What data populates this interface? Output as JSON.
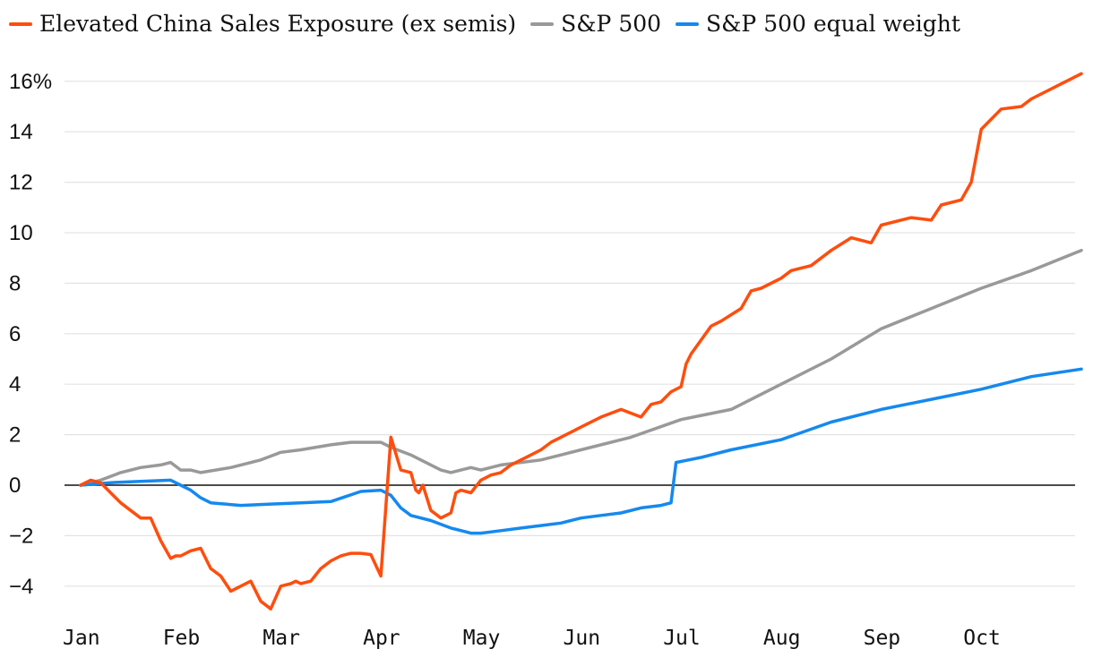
{
  "chart_data": {
    "type": "line",
    "title": "",
    "xlabel": "",
    "ylabel": "",
    "ylim": [
      -5,
      16
    ],
    "y_ticks": [
      -4,
      -2,
      0,
      2,
      4,
      6,
      8,
      10,
      12,
      14,
      16
    ],
    "y_tick_labels": [
      "−4",
      "−2",
      "0",
      "2",
      "4",
      "6",
      "8",
      "10",
      "12",
      "14",
      "16%"
    ],
    "x_range": [
      0,
      10
    ],
    "x_ticks": [
      0,
      1,
      2,
      3,
      4,
      5,
      6,
      7,
      8,
      9
    ],
    "x_tick_labels": [
      "Jan",
      "Feb",
      "Mar",
      "Apr",
      "May",
      "Jun",
      "Jul",
      "Aug",
      "Sep",
      "Oct"
    ],
    "grid": true,
    "legend_position": "top-left",
    "series": [
      {
        "name": "Elevated China Sales Exposure (ex semis)",
        "color": "#ff4d0d",
        "x": [
          0,
          0.1,
          0.2,
          0.3,
          0.4,
          0.5,
          0.6,
          0.7,
          0.8,
          0.9,
          0.95,
          1.0,
          1.1,
          1.2,
          1.3,
          1.4,
          1.5,
          1.6,
          1.7,
          1.8,
          1.9,
          2.0,
          2.1,
          2.15,
          2.2,
          2.3,
          2.4,
          2.5,
          2.6,
          2.7,
          2.8,
          2.9,
          3.0,
          3.1,
          3.2,
          3.3,
          3.35,
          3.38,
          3.42,
          3.5,
          3.6,
          3.7,
          3.75,
          3.8,
          3.9,
          4.0,
          4.1,
          4.2,
          4.3,
          4.4,
          4.5,
          4.6,
          4.7,
          4.8,
          4.9,
          5.0,
          5.2,
          5.4,
          5.6,
          5.7,
          5.8,
          5.9,
          6.0,
          6.05,
          6.1,
          6.3,
          6.4,
          6.6,
          6.7,
          6.8,
          7.0,
          7.1,
          7.3,
          7.5,
          7.7,
          7.9,
          8.0,
          8.3,
          8.5,
          8.6,
          8.8,
          8.9,
          9.0,
          9.2,
          9.4,
          9.5,
          9.8,
          10.0
        ],
        "values": [
          0,
          0.2,
          0.1,
          -0.3,
          -0.7,
          -1.0,
          -1.3,
          -1.3,
          -2.2,
          -2.9,
          -2.8,
          -2.8,
          -2.6,
          -2.5,
          -3.3,
          -3.6,
          -4.2,
          -4.0,
          -3.8,
          -4.6,
          -4.9,
          -4.0,
          -3.9,
          -3.8,
          -3.9,
          -3.8,
          -3.3,
          -3.0,
          -2.8,
          -2.7,
          -2.7,
          -2.75,
          -3.6,
          1.9,
          0.6,
          0.5,
          -0.2,
          -0.3,
          0.0,
          -1.0,
          -1.3,
          -1.1,
          -0.3,
          -0.2,
          -0.3,
          0.2,
          0.4,
          0.5,
          0.8,
          1.0,
          1.2,
          1.4,
          1.7,
          1.9,
          2.1,
          2.3,
          2.7,
          3.0,
          2.7,
          3.2,
          3.3,
          3.7,
          3.9,
          4.8,
          5.2,
          6.3,
          6.5,
          7.0,
          7.7,
          7.8,
          8.2,
          8.5,
          8.7,
          9.3,
          9.8,
          9.6,
          10.3,
          10.6,
          10.5,
          11.1,
          11.3,
          12.0,
          14.1,
          14.9,
          15.0,
          15.3,
          15.9,
          16.3
        ]
      },
      {
        "name": "S&P 500",
        "color": "#999999",
        "x": [
          0,
          0.2,
          0.4,
          0.6,
          0.8,
          0.9,
          1.0,
          1.1,
          1.2,
          1.5,
          1.8,
          2.0,
          2.2,
          2.5,
          2.7,
          3.0,
          3.1,
          3.3,
          3.5,
          3.6,
          3.7,
          3.8,
          3.9,
          4.0,
          4.2,
          4.4,
          4.6,
          4.8,
          5.0,
          5.5,
          6.0,
          6.5,
          7.0,
          7.5,
          8.0,
          8.5,
          9.0,
          9.5,
          10.0
        ],
        "values": [
          0,
          0.2,
          0.5,
          0.7,
          0.8,
          0.9,
          0.6,
          0.6,
          0.5,
          0.7,
          1.0,
          1.3,
          1.4,
          1.6,
          1.7,
          1.7,
          1.5,
          1.2,
          0.8,
          0.6,
          0.5,
          0.6,
          0.7,
          0.6,
          0.8,
          0.9,
          1.0,
          1.2,
          1.4,
          1.9,
          2.6,
          3.0,
          4.0,
          5.0,
          6.2,
          7.0,
          7.8,
          8.5,
          9.3
        ]
      },
      {
        "name": "S&P 500 equal weight",
        "color": "#1589ee",
        "x": [
          0,
          0.3,
          0.6,
          0.9,
          1.0,
          1.1,
          1.2,
          1.3,
          1.6,
          1.9,
          2.2,
          2.5,
          2.8,
          3.0,
          3.1,
          3.2,
          3.3,
          3.5,
          3.7,
          3.9,
          4.0,
          4.2,
          4.4,
          4.6,
          4.8,
          5.0,
          5.2,
          5.4,
          5.6,
          5.8,
          5.9,
          5.95,
          6.2,
          6.5,
          7.0,
          7.5,
          8.0,
          8.5,
          9.0,
          9.2,
          9.5,
          10.0
        ],
        "values": [
          0,
          0.1,
          0.15,
          0.2,
          0.0,
          -0.2,
          -0.5,
          -0.7,
          -0.8,
          -0.75,
          -0.7,
          -0.65,
          -0.25,
          -0.2,
          -0.4,
          -0.9,
          -1.2,
          -1.4,
          -1.7,
          -1.9,
          -1.9,
          -1.8,
          -1.7,
          -1.6,
          -1.5,
          -1.3,
          -1.2,
          -1.1,
          -0.9,
          -0.8,
          -0.7,
          0.9,
          1.1,
          1.4,
          1.8,
          2.5,
          3.0,
          3.4,
          3.8,
          4.0,
          4.3,
          4.6
        ]
      }
    ]
  }
}
